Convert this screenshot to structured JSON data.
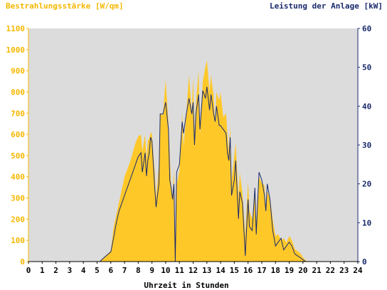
{
  "chart_data": {
    "type": "area",
    "left_title": "Bestrahlungsstärke [W/qm]",
    "right_title": "Leistung der Anlage [kW]",
    "xlabel": "Uhrzeit in Stunden",
    "x_ticks": [
      "0",
      "1",
      "2",
      "3",
      "4",
      "5",
      "6",
      "7",
      "8",
      "9",
      "10",
      "11",
      "12",
      "13",
      "14",
      "15",
      "16",
      "17",
      "18",
      "19",
      "20",
      "21",
      "22",
      "23",
      "24"
    ],
    "xlim": [
      0,
      24
    ],
    "y_left_lim": [
      0,
      1100
    ],
    "y_left_ticks": [
      "0",
      "100",
      "200",
      "300",
      "400",
      "500",
      "600",
      "700",
      "800",
      "900",
      "1000",
      "1100"
    ],
    "y_right_lim": [
      0,
      60
    ],
    "y_right_ticks": [
      "0",
      "10",
      "20",
      "30",
      "40",
      "50",
      "60"
    ],
    "colors": {
      "irradiance_fill": "#FFC829",
      "power_line": "#1A2A6C",
      "left_axis_text": "#F5B800",
      "right_axis_text": "#1A2A6C",
      "plot_bg": "#DCDCDC",
      "xaxis_text": "#000000"
    },
    "series": [
      {
        "axis": "left",
        "style": "area",
        "x": [
          0,
          5.2,
          5.5,
          6.0,
          6.2,
          6.4,
          6.6,
          7.0,
          7.4,
          7.8,
          8.0,
          8.2,
          8.3,
          8.5,
          8.6,
          8.7,
          8.8,
          8.9,
          9.0,
          9.2,
          9.3,
          9.5,
          9.6,
          9.8,
          10.0,
          10.2,
          10.3,
          10.4,
          10.5,
          10.6,
          10.7,
          10.8,
          11.0,
          11.2,
          11.3,
          11.5,
          11.7,
          11.9,
          12.0,
          12.1,
          12.2,
          12.4,
          12.5,
          12.7,
          12.9,
          13.0,
          13.2,
          13.3,
          13.5,
          13.6,
          13.7,
          13.9,
          14.0,
          14.2,
          14.4,
          14.5,
          14.6,
          14.7,
          14.8,
          15.0,
          15.1,
          15.3,
          15.4,
          15.6,
          15.8,
          16.0,
          16.1,
          16.3,
          16.5,
          16.6,
          16.8,
          17.0,
          17.2,
          17.3,
          17.4,
          17.6,
          17.8,
          18.0,
          18.2,
          18.4,
          18.6,
          18.8,
          19.0,
          19.2,
          19.4,
          19.6,
          19.8,
          20.0,
          20.2,
          20.5,
          24
        ],
        "y": [
          0,
          0,
          20,
          50,
          160,
          220,
          280,
          400,
          470,
          560,
          590,
          600,
          520,
          600,
          480,
          570,
          580,
          610,
          600,
          420,
          300,
          450,
          700,
          690,
          860,
          650,
          500,
          350,
          300,
          440,
          0,
          360,
          430,
          700,
          540,
          700,
          880,
          700,
          870,
          600,
          750,
          900,
          600,
          850,
          920,
          950,
          800,
          880,
          780,
          650,
          800,
          760,
          800,
          680,
          700,
          600,
          520,
          640,
          380,
          500,
          560,
          300,
          420,
          320,
          120,
          380,
          240,
          200,
          320,
          180,
          400,
          370,
          360,
          230,
          330,
          300,
          200,
          120,
          130,
          100,
          110,
          90,
          120,
          100,
          60,
          50,
          40,
          20,
          5,
          0,
          0
        ]
      },
      {
        "axis": "right",
        "style": "line",
        "x": [
          0,
          5.2,
          5.5,
          6.0,
          6.2,
          6.4,
          6.6,
          7.0,
          7.4,
          7.8,
          8.0,
          8.2,
          8.3,
          8.5,
          8.6,
          8.7,
          8.8,
          8.9,
          9.0,
          9.2,
          9.3,
          9.5,
          9.6,
          9.8,
          10.0,
          10.2,
          10.3,
          10.4,
          10.5,
          10.6,
          10.7,
          10.8,
          11.0,
          11.2,
          11.3,
          11.5,
          11.7,
          11.9,
          12.0,
          12.1,
          12.2,
          12.4,
          12.5,
          12.7,
          12.9,
          13.0,
          13.2,
          13.3,
          13.5,
          13.6,
          13.7,
          13.9,
          14.0,
          14.2,
          14.4,
          14.5,
          14.6,
          14.7,
          14.8,
          15.0,
          15.1,
          15.3,
          15.4,
          15.6,
          15.8,
          16.0,
          16.1,
          16.3,
          16.5,
          16.6,
          16.8,
          17.0,
          17.2,
          17.3,
          17.4,
          17.6,
          17.8,
          18.0,
          18.2,
          18.4,
          18.6,
          18.8,
          19.0,
          19.2,
          19.4,
          19.6,
          19.8,
          20.0,
          20.2,
          20.5,
          24
        ],
        "y": [
          0,
          0,
          1,
          2.5,
          6,
          10,
          13,
          17,
          21,
          25,
          27,
          28,
          23,
          28,
          22,
          26,
          28,
          32,
          31,
          19,
          14,
          20,
          38,
          38,
          41,
          34,
          21,
          19,
          16,
          20,
          0,
          23,
          25,
          36,
          33,
          38,
          42,
          38,
          41,
          30,
          38,
          43,
          34,
          44,
          42,
          45,
          39,
          43,
          38,
          36,
          40,
          35,
          35,
          34,
          33,
          28,
          26,
          32,
          17,
          21,
          26,
          11,
          18,
          15,
          1.5,
          16,
          9,
          8,
          19,
          7,
          23,
          21,
          17,
          13,
          20,
          16,
          8,
          4,
          5,
          6,
          3,
          4,
          5,
          4,
          2,
          1.5,
          1,
          0.5,
          0,
          0,
          0
        ]
      }
    ]
  }
}
